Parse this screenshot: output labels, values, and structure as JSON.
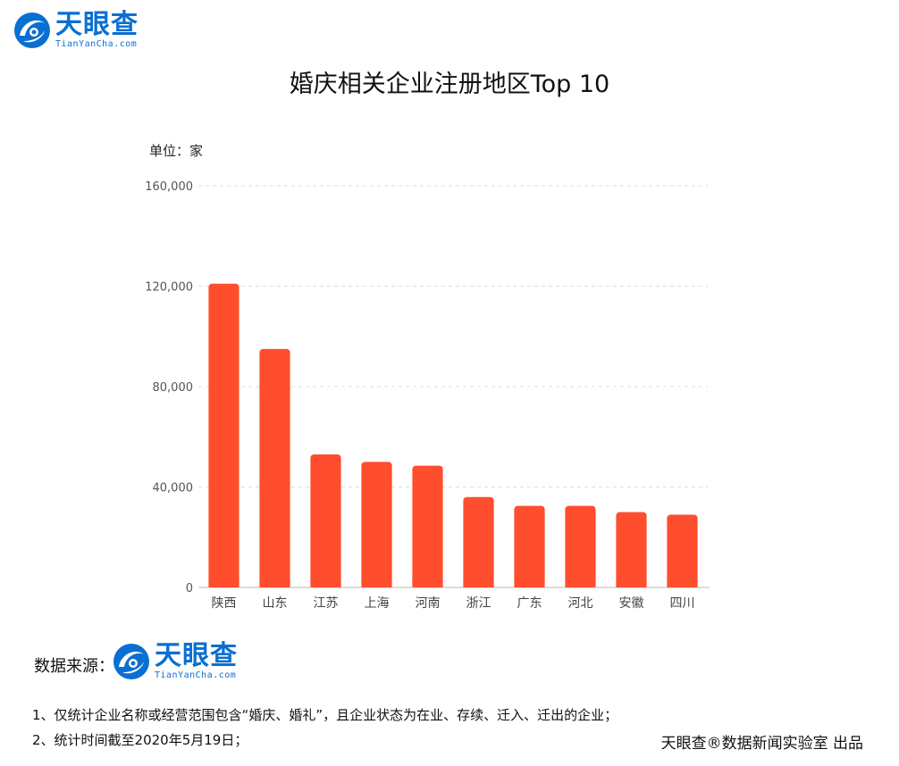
{
  "logo": {
    "cn": "天眼查",
    "en": "TianYanCha.com",
    "brand_color": "#0a6fd2"
  },
  "unit_label": "单位：家",
  "source": {
    "label": "数据来源："
  },
  "notes": [
    "1、仅统计企业名称或经营范围包含“婚庆、婚礼”，且企业状态为在业、存续、迁入、迁出的企业；",
    "2、统计时间截至2020年5月19日；"
  ],
  "credit": "天眼查®数据新闻实验室 出品",
  "chart_data": {
    "type": "bar",
    "title": "婚庆相关企业注册地区Top 10",
    "categories": [
      "陕西",
      "山东",
      "江苏",
      "上海",
      "河南",
      "浙江",
      "广东",
      "河北",
      "安徽",
      "四川"
    ],
    "values": [
      121000,
      95000,
      53000,
      50000,
      48500,
      36000,
      32500,
      32500,
      30000,
      29000
    ],
    "ylim": [
      0,
      160000
    ],
    "yticks": [
      0,
      40000,
      80000,
      120000,
      160000
    ],
    "ytick_labels": [
      "0",
      "40,000",
      "80,000",
      "120,000",
      "160,000"
    ],
    "bar_color": "#ff4e2d",
    "grid": true,
    "xlabel": "",
    "ylabel": ""
  }
}
